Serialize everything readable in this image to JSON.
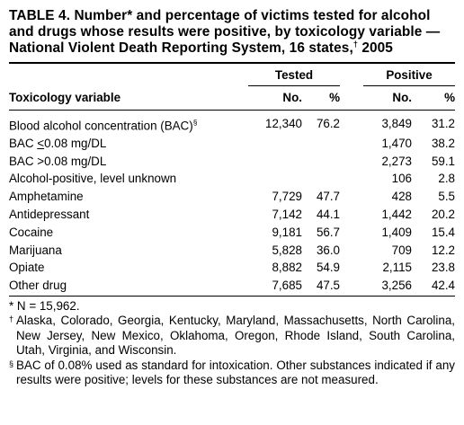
{
  "title": {
    "main": "TABLE 4. Number* and percentage of victims tested for alcohol and drugs whose results were positive, by toxicology variable — National Violent Death Reporting System, 16 states,",
    "dagger": "†",
    "year": " 2005"
  },
  "table": {
    "group_tested": "Tested",
    "group_positive": "Positive",
    "col_variable": "Toxicology variable",
    "col_tested_no": "No.",
    "col_tested_pct": "%",
    "col_positive_no": "No.",
    "col_positive_pct": "%",
    "rows": [
      {
        "label": "Blood alcohol concentration (BAC)",
        "mark": "§",
        "tested_no": "12,340",
        "tested_pct": "76.2",
        "positive_no": "3,849",
        "positive_pct": "31.2"
      },
      {
        "label_pre": "BAC ",
        "label_u": "<",
        "label_post": "0.08 mg/DL",
        "tested_no": "",
        "tested_pct": "",
        "positive_no": "1,470",
        "positive_pct": "38.2"
      },
      {
        "label": "BAC >0.08 mg/DL",
        "tested_no": "",
        "tested_pct": "",
        "positive_no": "2,273",
        "positive_pct": "59.1"
      },
      {
        "label": "Alcohol-positive, level unknown",
        "tested_no": "",
        "tested_pct": "",
        "positive_no": "106",
        "positive_pct": "2.8"
      },
      {
        "label": "Amphetamine",
        "tested_no": "7,729",
        "tested_pct": "47.7",
        "positive_no": "428",
        "positive_pct": "5.5"
      },
      {
        "label": "Antidepressant",
        "tested_no": "7,142",
        "tested_pct": "44.1",
        "positive_no": "1,442",
        "positive_pct": "20.2"
      },
      {
        "label": "Cocaine",
        "tested_no": "9,181",
        "tested_pct": "56.7",
        "positive_no": "1,409",
        "positive_pct": "15.4"
      },
      {
        "label": "Marijuana",
        "tested_no": "5,828",
        "tested_pct": "36.0",
        "positive_no": "709",
        "positive_pct": "12.2"
      },
      {
        "label": "Opiate",
        "tested_no": "8,882",
        "tested_pct": "54.9",
        "positive_no": "2,115",
        "positive_pct": "23.8"
      },
      {
        "label": "Other drug",
        "tested_no": "7,685",
        "tested_pct": "47.5",
        "positive_no": "3,256",
        "positive_pct": "42.4"
      }
    ]
  },
  "footnotes": [
    {
      "mark": "",
      "text": "* N = 15,962."
    },
    {
      "mark": "†",
      "text": "Alaska, Colorado, Georgia, Kentucky, Maryland, Massachusetts, North Carolina, New Jersey, New Mexico, Oklahoma, Oregon, Rhode Island, South Carolina, Utah, Virginia, and Wisconsin."
    },
    {
      "mark": "§",
      "text": "BAC of 0.08% used as standard for intoxication. Other substances indicated if any results were positive; levels for these substances are not measured."
    }
  ]
}
